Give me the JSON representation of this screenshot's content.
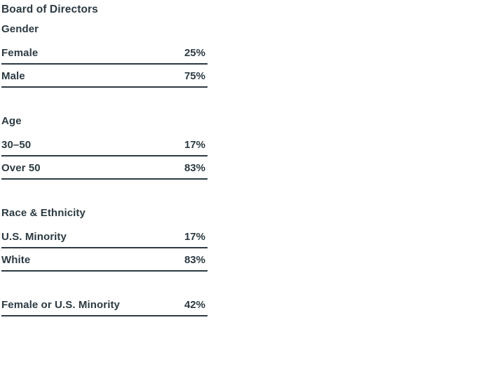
{
  "page": {
    "title": "Board of Directors"
  },
  "table": {
    "sections": [
      {
        "header": "Gender",
        "rows": [
          {
            "label": "Female",
            "value": "25%"
          },
          {
            "label": "Male",
            "value": "75%"
          }
        ]
      },
      {
        "header": "Age",
        "rows": [
          {
            "label": "30–50",
            "value": "17%"
          },
          {
            "label": "Over 50",
            "value": "83%"
          }
        ]
      },
      {
        "header": "Race & Ethnicity",
        "rows": [
          {
            "label": "U.S. Minority",
            "value": "17%"
          },
          {
            "label": "White",
            "value": "83%"
          }
        ]
      },
      {
        "rows": [
          {
            "label": "Female or U.S. Minority",
            "value": "42%"
          }
        ]
      }
    ]
  },
  "colors": {
    "text": "#2c3a42",
    "rule": "#2c3a42",
    "background": "#ffffff"
  }
}
